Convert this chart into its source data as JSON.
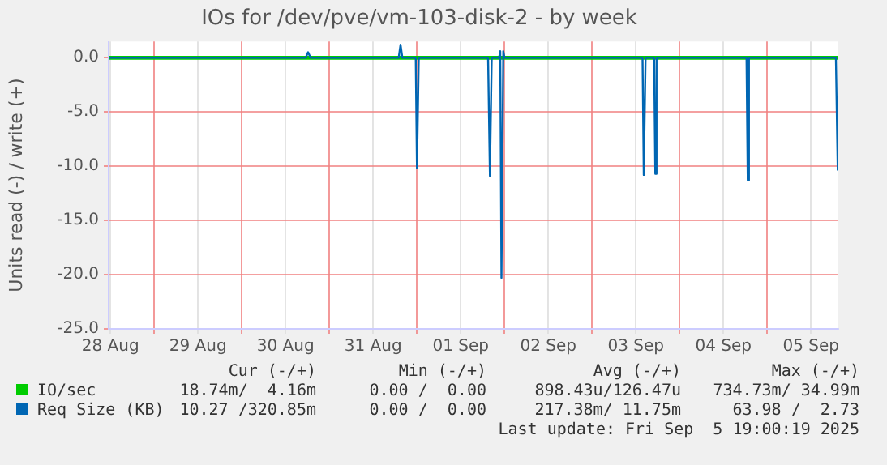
{
  "chart_data": {
    "type": "line",
    "title": "IOs for /dev/pve/vm-103-disk-2 - by week",
    "ylabel": "Units read (-) / write (+)",
    "xlim": [
      "2025-08-28T11:30",
      "2025-09-05T19:30"
    ],
    "xticks": [
      {
        "value": "2025-08-28T12:00",
        "label": "28 Aug"
      },
      {
        "value": "2025-08-29T00:00",
        "label": null
      },
      {
        "value": "2025-08-29T12:00",
        "label": "29 Aug"
      },
      {
        "value": "2025-08-30T00:00",
        "label": null
      },
      {
        "value": "2025-08-30T12:00",
        "label": "30 Aug"
      },
      {
        "value": "2025-08-31T00:00",
        "label": null
      },
      {
        "value": "2025-08-31T12:00",
        "label": "31 Aug"
      },
      {
        "value": "2025-09-01T00:00",
        "label": null
      },
      {
        "value": "2025-09-01T12:00",
        "label": "01 Sep"
      },
      {
        "value": "2025-09-02T00:00",
        "label": null
      },
      {
        "value": "2025-09-02T12:00",
        "label": "02 Sep"
      },
      {
        "value": "2025-09-03T00:00",
        "label": null
      },
      {
        "value": "2025-09-03T12:00",
        "label": "03 Sep"
      },
      {
        "value": "2025-09-04T00:00",
        "label": null
      },
      {
        "value": "2025-09-04T12:00",
        "label": "04 Sep"
      },
      {
        "value": "2025-09-05T00:00",
        "label": null
      },
      {
        "value": "2025-09-05T12:00",
        "label": "05 Sep"
      }
    ],
    "ylim": [
      -25,
      1.5
    ],
    "yticks": [
      {
        "value": -25,
        "label": "-25.0"
      },
      {
        "value": -20,
        "label": "-20.0"
      },
      {
        "value": -15,
        "label": "-15.0"
      },
      {
        "value": -10,
        "label": "-10.0"
      },
      {
        "value": -5,
        "label": "-5.0"
      },
      {
        "value": 0,
        "label": "0.0"
      }
    ],
    "grid": true,
    "legend": "bottom",
    "marker": "none",
    "line_style": "solid",
    "series": [
      {
        "name": "IO/sec",
        "color": "#00cc00",
        "x": [
          "2025-08-28T11:30",
          "2025-09-05T19:30"
        ],
        "values": [
          0,
          0
        ]
      },
      {
        "name": "Req Size (KB)",
        "color": "#0066b3",
        "x": [
          "2025-08-28T11:30",
          "2025-08-30T17:30",
          "2025-08-30T18:10",
          "2025-08-30T18:50",
          "2025-08-31T19:00",
          "2025-08-31T19:30",
          "2025-08-31T20:00",
          "2025-08-31T23:40",
          "2025-09-01T00:00",
          "2025-09-01T00:30",
          "2025-09-01T19:30",
          "2025-09-01T20:00",
          "2025-09-01T20:30",
          "2025-09-01T22:30",
          "2025-09-01T22:50",
          "2025-09-01T23:10",
          "2025-09-01T23:40",
          "2025-09-02T00:00",
          "2025-09-03T13:50",
          "2025-09-03T14:10",
          "2025-09-03T14:40",
          "2025-09-03T17:00",
          "2025-09-03T17:20",
          "2025-09-03T17:40",
          "2025-09-04T18:20",
          "2025-09-04T18:40",
          "2025-09-04T19:00",
          "2025-09-05T18:50",
          "2025-09-05T19:20"
        ],
        "values": [
          0,
          0,
          0.5,
          0,
          0,
          1.2,
          0,
          0,
          -10.2,
          0,
          0,
          -10.9,
          0,
          0,
          0.6,
          -20.3,
          0.6,
          0,
          0,
          -10.8,
          0,
          0,
          -10.7,
          0,
          0,
          -11.3,
          0,
          0,
          -10.4
        ]
      }
    ],
    "annotations": [
      "Cur (-/+)",
      "Min (-/+)",
      "Avg (-/+)",
      "Max (-/+)",
      "18.74m/  4.16m",
      "0.00 /  0.00",
      "898.43u/126.47u",
      "734.73m/ 34.99m",
      "10.27 /320.85m",
      "0.00 /  0.00",
      "217.38m/ 11.75m",
      "63.98 /  2.73",
      "Last update: Fri Sep  5 19:00:19 2025"
    ]
  }
}
